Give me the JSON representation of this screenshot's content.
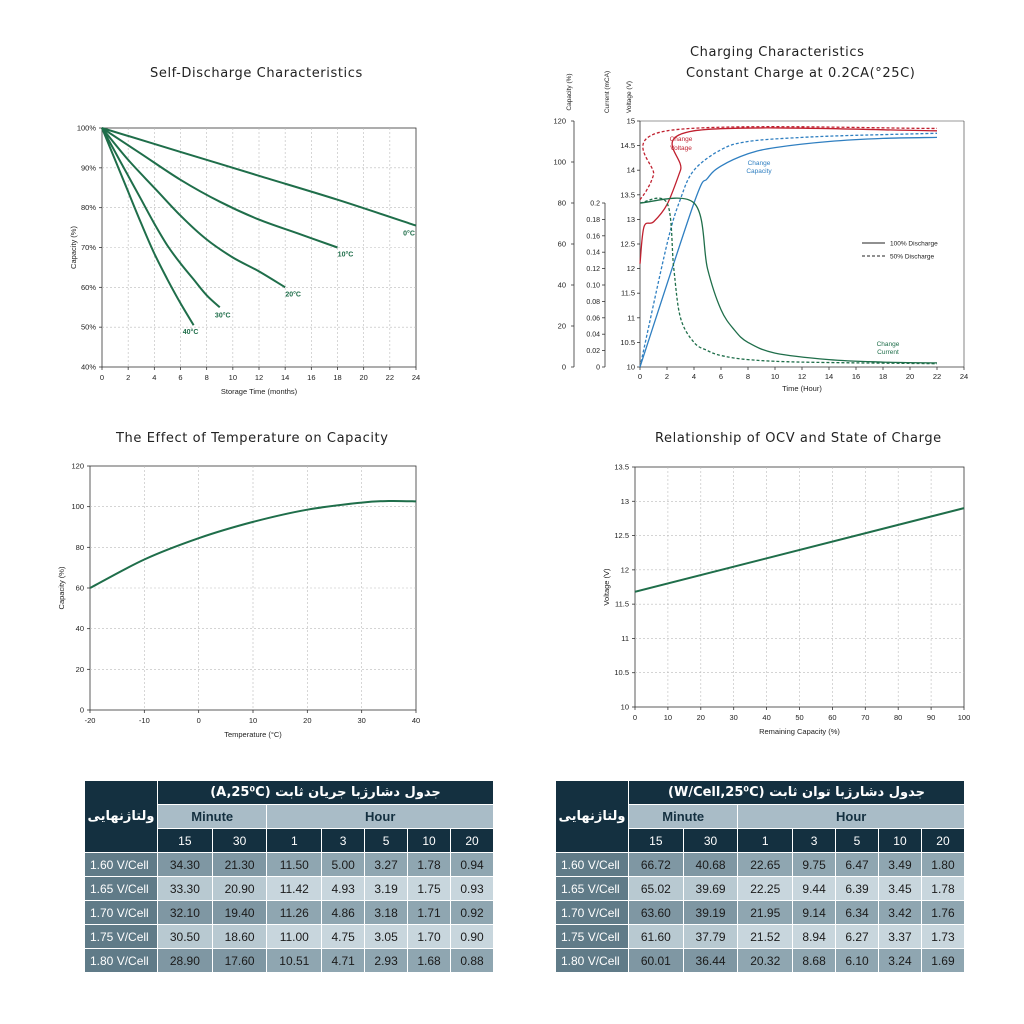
{
  "colors": {
    "green": "#1f6e4a",
    "red": "#c0202f",
    "blue": "#2f7fc1",
    "navy": "#143040"
  },
  "chart_data": [
    {
      "type": "line",
      "title": "Self-Discharge Characteristics",
      "xlabel": "Storage Time (months)",
      "ylabel": "Capacity (%)",
      "xlim": [
        0,
        24
      ],
      "ylim": [
        40,
        100
      ],
      "x_ticks": [
        "0",
        "2",
        "4",
        "6",
        "8",
        "10",
        "12",
        "14",
        "16",
        "18",
        "20",
        "22",
        "24"
      ],
      "y_ticks": [
        "40%",
        "50%",
        "60%",
        "70%",
        "80%",
        "90%",
        "100%"
      ],
      "grid": true,
      "series": [
        {
          "name": "0°C",
          "x": [
            0,
            6,
            12,
            18,
            24
          ],
          "y": [
            100,
            94,
            88,
            82,
            75.5
          ]
        },
        {
          "name": "10°C",
          "x": [
            0,
            3,
            6,
            9,
            12,
            15,
            18
          ],
          "y": [
            100,
            93.5,
            87,
            81.5,
            77,
            73.5,
            70
          ]
        },
        {
          "name": "20°C",
          "x": [
            0,
            2,
            4,
            6,
            8,
            10,
            12,
            14
          ],
          "y": [
            100,
            92,
            85,
            78,
            72,
            67.5,
            64,
            60
          ]
        },
        {
          "name": "30°C",
          "x": [
            0,
            1,
            2,
            3,
            4,
            5,
            6,
            7,
            8,
            9
          ],
          "y": [
            100,
            94,
            88,
            82,
            76,
            70.5,
            66,
            62,
            58,
            55
          ]
        },
        {
          "name": "40°C",
          "x": [
            0,
            1,
            2,
            3,
            4,
            5,
            6,
            7
          ],
          "y": [
            100,
            92,
            84,
            76,
            68.5,
            62,
            56,
            50.5
          ]
        }
      ]
    },
    {
      "type": "line",
      "title": "Charging Characteristics",
      "subtitle": "Constant Charge at 0.2CA(°25C)",
      "xlabel": "Time (Hour)",
      "ylabel_capacity": "Capacity (%)",
      "ylabel_current": "Current (mCA)",
      "ylabel_voltage": "Voltage (V)",
      "xlim": [
        0,
        24
      ],
      "x_ticks": [
        "0",
        "2",
        "4",
        "6",
        "8",
        "10",
        "12",
        "14",
        "16",
        "18",
        "20",
        "22",
        "24"
      ],
      "capacity_ticks": [
        "0",
        "20",
        "40",
        "60",
        "80",
        "100",
        "120"
      ],
      "current_ticks": [
        "0",
        "0.02",
        "0.04",
        "0.06",
        "0.08",
        "0.10",
        "0.12",
        "0.14",
        "0.16",
        "0.18",
        "0.2"
      ],
      "voltage_ticks": [
        "10",
        "10.5",
        "11",
        "11.5",
        "12",
        "12.5",
        "13",
        "13.5",
        "14",
        "14.5",
        "15"
      ],
      "legend": [
        "100% Discharge",
        "50% Discharge"
      ],
      "annotations": [
        "Change Voltage",
        "Change Capacity",
        "Change Current"
      ],
      "series": [
        {
          "name": "Change Voltage",
          "style": "solid",
          "x": [
            0,
            0.3,
            1,
            2,
            3,
            4,
            22
          ],
          "y_voltage": [
            12.1,
            12.85,
            12.95,
            13.3,
            14,
            14.8,
            14.8
          ]
        },
        {
          "name": "Change Voltage",
          "style": "dashed",
          "x": [
            0,
            0.5,
            1,
            2,
            22
          ],
          "y_voltage": [
            13.4,
            13.6,
            13.9,
            14.8,
            14.85
          ]
        },
        {
          "name": "Change Capacity",
          "style": "solid",
          "x": [
            0,
            4,
            5,
            6,
            8,
            10,
            14,
            18,
            22
          ],
          "y_capacity": [
            0,
            80,
            92,
            98,
            104,
            107,
            110,
            111.5,
            112
          ]
        },
        {
          "name": "Change Capacity",
          "style": "dashed",
          "x": [
            0,
            2,
            3,
            4,
            6,
            8,
            12,
            16,
            22
          ],
          "y_capacity": [
            0,
            60,
            82,
            96,
            106,
            110,
            112,
            113,
            114
          ]
        },
        {
          "name": "Change Current",
          "style": "solid",
          "x": [
            0,
            4,
            5,
            6,
            7,
            8,
            10,
            14,
            18,
            22
          ],
          "y_current": [
            0.2,
            0.2,
            0.12,
            0.07,
            0.045,
            0.03,
            0.017,
            0.009,
            0.006,
            0.005
          ]
        },
        {
          "name": "Change Current",
          "style": "dashed",
          "x": [
            0,
            2,
            2.5,
            3,
            4,
            5,
            6,
            8,
            12,
            22
          ],
          "y_current": [
            0.2,
            0.2,
            0.12,
            0.06,
            0.03,
            0.02,
            0.014,
            0.009,
            0.006,
            0.004
          ]
        }
      ]
    },
    {
      "type": "line",
      "title": "The Effect of Temperature on Capacity",
      "xlabel": "Temperature (°C)",
      "ylabel": "Capacity (%)",
      "xlim": [
        -20,
        40
      ],
      "ylim": [
        0,
        120
      ],
      "x_ticks": [
        "-20",
        "-10",
        "0",
        "10",
        "20",
        "30",
        "40"
      ],
      "y_ticks": [
        "0",
        "20",
        "40",
        "60",
        "80",
        "100",
        "120"
      ],
      "grid": true,
      "series": [
        {
          "name": "",
          "x": [
            -20,
            -10,
            0,
            10,
            20,
            30,
            35,
            40
          ],
          "y": [
            60,
            74,
            84.5,
            92.5,
            98.5,
            102,
            102.8,
            102.6
          ]
        }
      ]
    },
    {
      "type": "line",
      "title": "Relationship of OCV and State of Charge",
      "xlabel": "Remaining Capacity (%)",
      "ylabel": "Voltage (V)",
      "xlim": [
        0,
        100
      ],
      "ylim": [
        10,
        13.5
      ],
      "x_ticks": [
        "0",
        "10",
        "20",
        "30",
        "40",
        "50",
        "60",
        "70",
        "80",
        "90",
        "100"
      ],
      "y_ticks": [
        "10",
        "10.5",
        "11",
        "11.5",
        "12",
        "12.5",
        "13",
        "13.5"
      ],
      "grid": true,
      "series": [
        {
          "name": "",
          "x": [
            0,
            100
          ],
          "y": [
            11.68,
            12.9
          ]
        }
      ]
    },
    {
      "type": "table",
      "title": "جدول دشارژبا جریان ثابت (A,25⁰C)",
      "row_header": "ولتاژنهایی",
      "groups": [
        {
          "label": "Minute",
          "span": 2
        },
        {
          "label": "Hour",
          "span": 5
        }
      ],
      "columns": [
        "15",
        "30",
        "1",
        "3",
        "5",
        "10",
        "20"
      ],
      "rows": [
        {
          "label": "1.60 V/Cell",
          "values": [
            "34.30",
            "21.30",
            "11.50",
            "5.00",
            "3.27",
            "1.78",
            "0.94"
          ]
        },
        {
          "label": "1.65 V/Cell",
          "values": [
            "33.30",
            "20.90",
            "11.42",
            "4.93",
            "3.19",
            "1.75",
            "0.93"
          ]
        },
        {
          "label": "1.70 V/Cell",
          "values": [
            "32.10",
            "19.40",
            "11.26",
            "4.86",
            "3.18",
            "1.71",
            "0.92"
          ]
        },
        {
          "label": "1.75 V/Cell",
          "values": [
            "30.50",
            "18.60",
            "11.00",
            "4.75",
            "3.05",
            "1.70",
            "0.90"
          ]
        },
        {
          "label": "1.80 V/Cell",
          "values": [
            "28.90",
            "17.60",
            "10.51",
            "4.71",
            "2.93",
            "1.68",
            "0.88"
          ]
        }
      ]
    },
    {
      "type": "table",
      "title": "جدول دشارژبا توان ثابت (W/Cell,25⁰C)",
      "row_header": "ولتاژنهایی",
      "groups": [
        {
          "label": "Minute",
          "span": 2
        },
        {
          "label": "Hour",
          "span": 5
        }
      ],
      "columns": [
        "15",
        "30",
        "1",
        "3",
        "5",
        "10",
        "20"
      ],
      "rows": [
        {
          "label": "1.60 V/Cell",
          "values": [
            "66.72",
            "40.68",
            "22.65",
            "9.75",
            "6.47",
            "3.49",
            "1.80"
          ]
        },
        {
          "label": "1.65 V/Cell",
          "values": [
            "65.02",
            "39.69",
            "22.25",
            "9.44",
            "6.39",
            "3.45",
            "1.78"
          ]
        },
        {
          "label": "1.70 V/Cell",
          "values": [
            "63.60",
            "39.19",
            "21.95",
            "9.14",
            "6.34",
            "3.42",
            "1.76"
          ]
        },
        {
          "label": "1.75 V/Cell",
          "values": [
            "61.60",
            "37.79",
            "21.52",
            "8.94",
            "6.27",
            "3.37",
            "1.73"
          ]
        },
        {
          "label": "1.80 V/Cell",
          "values": [
            "60.01",
            "36.44",
            "20.32",
            "8.68",
            "6.10",
            "3.24",
            "1.69"
          ]
        }
      ]
    }
  ]
}
